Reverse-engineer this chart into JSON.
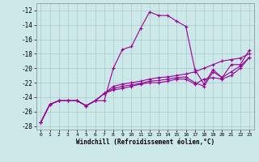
{
  "xlabel": "Windchill (Refroidissement éolien,°C)",
  "bg_color": "#cce8e8",
  "line_color": "#990099",
  "grid_color": "#aacccc",
  "xlim": [
    -0.5,
    23.5
  ],
  "ylim": [
    -28.5,
    -11.0
  ],
  "yticks": [
    -28,
    -26,
    -24,
    -22,
    -20,
    -18,
    -16,
    -14,
    -12
  ],
  "xticks": [
    0,
    1,
    2,
    3,
    4,
    5,
    6,
    7,
    8,
    9,
    10,
    11,
    12,
    13,
    14,
    15,
    16,
    17,
    18,
    19,
    20,
    21,
    22,
    23
  ],
  "series": [
    {
      "x": [
        0,
        1,
        2,
        3,
        4,
        5,
        6,
        7,
        8,
        9,
        10,
        11,
        12,
        13,
        14,
        15,
        16,
        17,
        18,
        19,
        20,
        21,
        22,
        23
      ],
      "y": [
        -27.5,
        -25.0,
        -24.5,
        -24.5,
        -24.5,
        -25.2,
        -24.5,
        -24.5,
        -20.0,
        -17.4,
        -17.0,
        -14.5,
        -12.2,
        -12.7,
        -12.7,
        -13.5,
        -14.2,
        -20.2,
        -22.2,
        -20.2,
        -21.3,
        -19.5,
        -19.5,
        -17.5
      ]
    },
    {
      "x": [
        0,
        1,
        2,
        3,
        4,
        5,
        6,
        7,
        8,
        9,
        10,
        11,
        12,
        13,
        14,
        15,
        16,
        17,
        18,
        19,
        20,
        21,
        22,
        23
      ],
      "y": [
        -27.5,
        -25.0,
        -24.5,
        -24.5,
        -24.5,
        -25.2,
        -24.5,
        -23.5,
        -23.0,
        -22.8,
        -22.5,
        -22.2,
        -22.0,
        -22.0,
        -21.8,
        -21.5,
        -21.5,
        -22.2,
        -21.5,
        -21.3,
        -21.5,
        -21.0,
        -20.0,
        -18.5
      ]
    },
    {
      "x": [
        0,
        1,
        2,
        3,
        4,
        5,
        6,
        7,
        8,
        9,
        10,
        11,
        12,
        13,
        14,
        15,
        16,
        17,
        18,
        19,
        20,
        21,
        22,
        23
      ],
      "y": [
        -27.5,
        -25.0,
        -24.5,
        -24.5,
        -24.5,
        -25.2,
        -24.5,
        -23.5,
        -22.8,
        -22.5,
        -22.3,
        -22.1,
        -21.8,
        -21.7,
        -21.5,
        -21.3,
        -21.2,
        -22.0,
        -22.5,
        -20.5,
        -21.3,
        -20.5,
        -19.7,
        -18.5
      ]
    },
    {
      "x": [
        0,
        1,
        2,
        3,
        4,
        5,
        6,
        7,
        8,
        9,
        10,
        11,
        12,
        13,
        14,
        15,
        16,
        17,
        18,
        19,
        20,
        21,
        22,
        23
      ],
      "y": [
        -27.5,
        -25.0,
        -24.5,
        -24.5,
        -24.5,
        -25.2,
        -24.5,
        -23.5,
        -22.5,
        -22.2,
        -22.0,
        -21.8,
        -21.5,
        -21.3,
        -21.2,
        -21.0,
        -20.8,
        -20.5,
        -20.0,
        -19.5,
        -19.0,
        -18.8,
        -18.6,
        -18.0
      ]
    }
  ]
}
